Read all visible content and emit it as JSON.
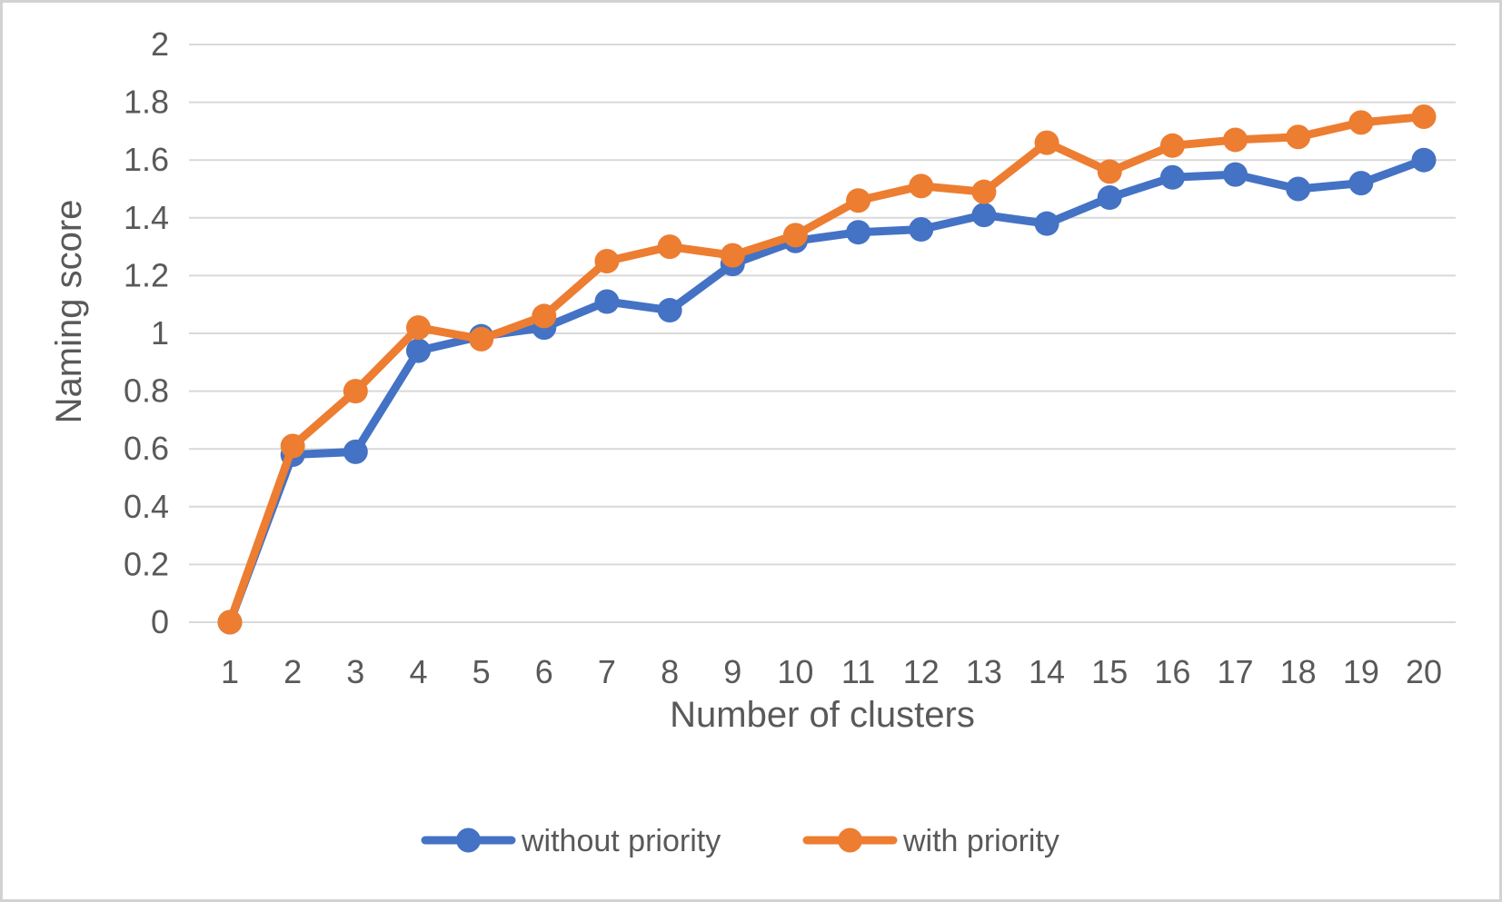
{
  "figure": {
    "background": "#ffffff",
    "border_color": "#d2d2d2"
  },
  "chart_data": {
    "type": "line",
    "title": "",
    "xlabel": "Number of clusters",
    "ylabel": "Naming score",
    "x": [
      1,
      2,
      3,
      4,
      5,
      6,
      7,
      8,
      9,
      10,
      11,
      12,
      13,
      14,
      15,
      16,
      17,
      18,
      19,
      20
    ],
    "series": [
      {
        "name": "without priority",
        "color": "#4472C4",
        "values": [
          0,
          0.58,
          0.59,
          0.94,
          0.99,
          1.02,
          1.11,
          1.08,
          1.24,
          1.32,
          1.35,
          1.36,
          1.41,
          1.38,
          1.47,
          1.54,
          1.55,
          1.5,
          1.52,
          1.6
        ]
      },
      {
        "name": "with priority",
        "color": "#ED7D31",
        "values": [
          0,
          0.61,
          0.8,
          1.02,
          0.98,
          1.06,
          1.25,
          1.3,
          1.27,
          1.34,
          1.46,
          1.51,
          1.49,
          1.66,
          1.56,
          1.65,
          1.67,
          1.68,
          1.73,
          1.75
        ]
      }
    ],
    "ylim": [
      0,
      2
    ],
    "ytick_step": 0.2,
    "ytick_labels": [
      "0",
      "0.2",
      "0.4",
      "0.6",
      "0.8",
      "1",
      "1.2",
      "1.4",
      "1.6",
      "1.8",
      "2"
    ],
    "grid": true,
    "gridline_color": "#D9D9D9",
    "text_color": "#595959",
    "legend_position": "bottom",
    "legend": [
      "without priority",
      "with priority"
    ]
  }
}
